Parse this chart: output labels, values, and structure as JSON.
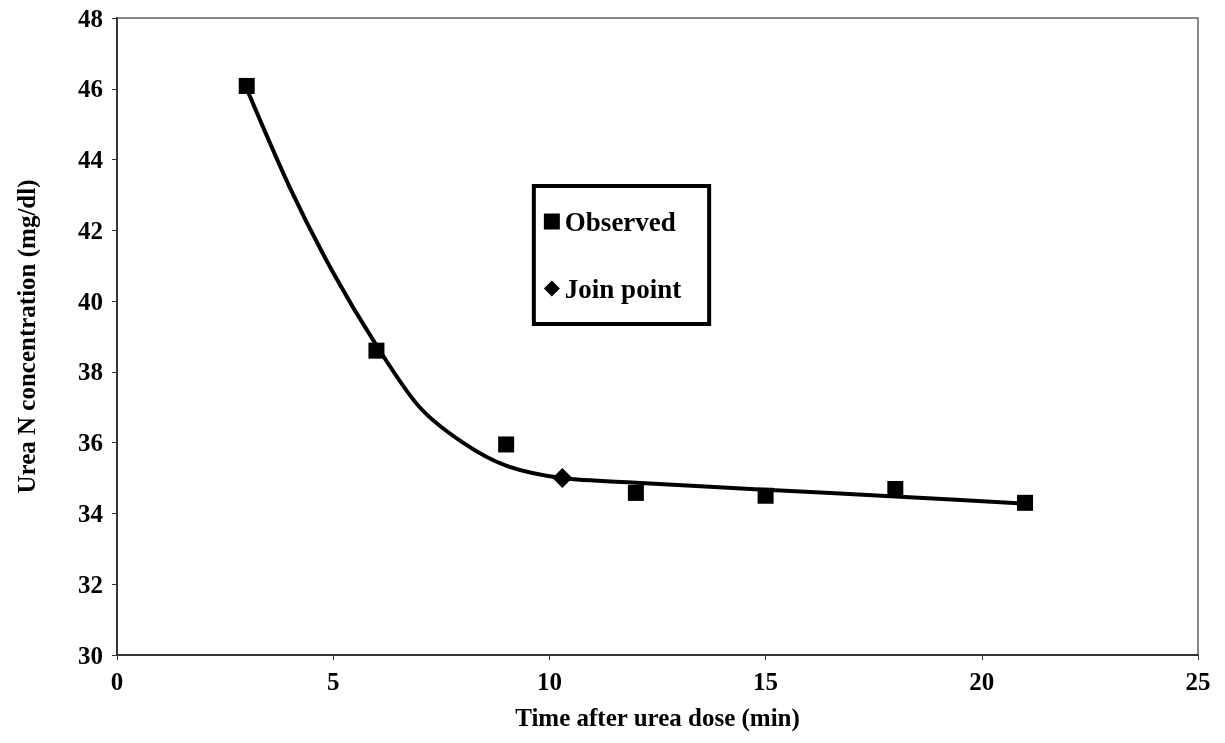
{
  "chart_data": {
    "type": "scatter",
    "xlabel": "Time after urea dose (min)",
    "ylabel": "Urea N concentration (mg/dl)",
    "xlim": [
      0,
      25
    ],
    "xticks": [
      0,
      5,
      10,
      15,
      20,
      25
    ],
    "ylim": [
      30,
      48
    ],
    "yticks": [
      30,
      32,
      34,
      36,
      38,
      40,
      42,
      44,
      46,
      48
    ],
    "grid": false,
    "legend": "top",
    "series": [
      {
        "name": "Observed",
        "marker": "square",
        "color": "#000000",
        "x": [
          3,
          6,
          9,
          12,
          15,
          18,
          21
        ],
        "values": [
          46.08,
          38.6,
          35.95,
          34.58,
          34.5,
          34.69,
          34.3
        ]
      },
      {
        "name": "Join point",
        "marker": "diamond",
        "color": "#000000",
        "x": [
          10.3
        ],
        "values": [
          35.0
        ]
      },
      {
        "type": "line",
        "marker": "none",
        "line_style": "solid",
        "color": "#000000",
        "x": [
          3,
          4,
          5,
          6,
          7,
          8,
          9,
          10.3,
          12,
          15,
          18,
          21
        ],
        "values": [
          46.0,
          43.2,
          40.8,
          38.75,
          37.0,
          36.0,
          35.35,
          35.0,
          34.87,
          34.67,
          34.48,
          34.28
        ]
      }
    ]
  }
}
